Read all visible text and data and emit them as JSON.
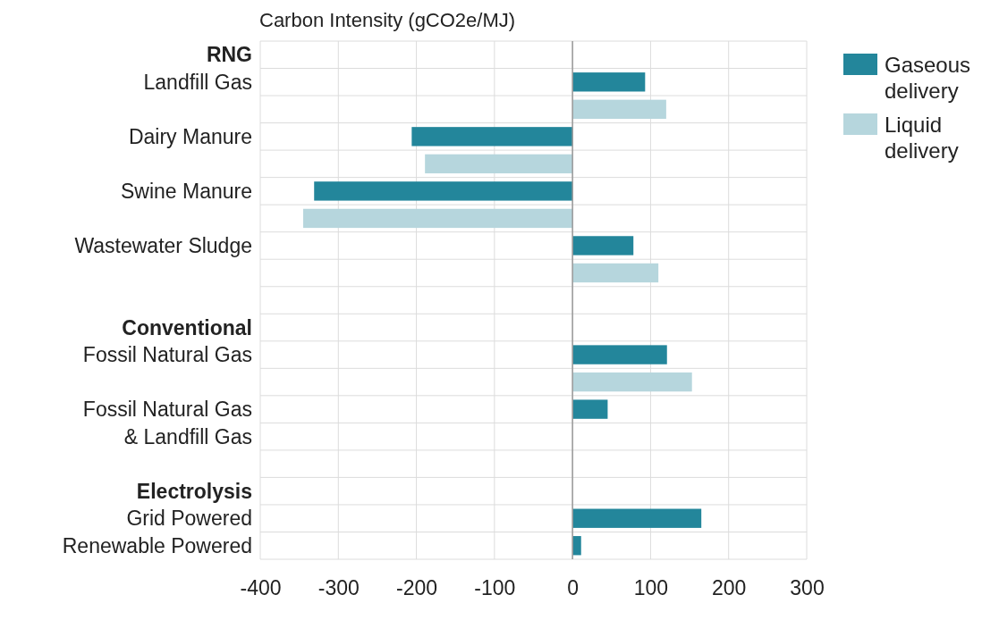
{
  "chart_data": {
    "type": "bar",
    "orientation": "horizontal",
    "xlabel": "Carbon Intensity (gCO2e/MJ)",
    "categories": [
      "RNG",
      "Landfill Gas",
      null,
      "Dairy Manure",
      null,
      "Swine Manure",
      null,
      "Wastewater Sludge",
      null,
      null,
      "Conventional",
      "Fossil Natural Gas",
      null,
      "Fossil Natural Gas\n& Landfill Gas",
      null,
      null,
      "Electrolysis",
      "Grid Powered",
      "Renewable Powered"
    ],
    "series": [
      {
        "name": "Gaseous delivery",
        "color": "#23869b",
        "values": [
          null,
          93,
          null,
          -206,
          null,
          -331,
          null,
          78,
          null,
          null,
          null,
          121,
          null,
          45,
          null,
          null,
          null,
          165,
          11
        ]
      },
      {
        "name": "Liquid delivery",
        "color": "#b6d6dd",
        "values": [
          null,
          null,
          120,
          null,
          -189,
          null,
          -345,
          null,
          110,
          null,
          null,
          null,
          153,
          null,
          null,
          null,
          null,
          null,
          null
        ]
      }
    ],
    "xlim": [
      -400,
      300
    ],
    "xticks": [
      -400,
      -300,
      -200,
      -100,
      0,
      100,
      200,
      300
    ],
    "grid": true,
    "legend": "top right"
  }
}
